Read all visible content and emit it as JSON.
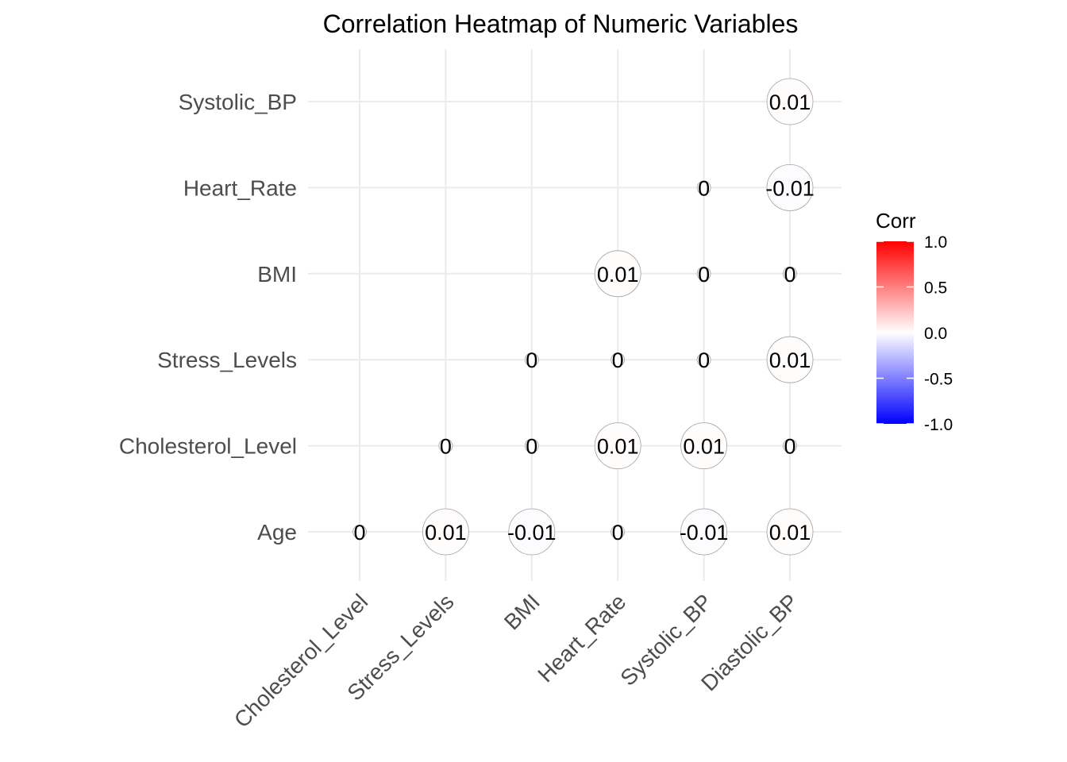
{
  "chart_data": {
    "type": "heatmap",
    "title": "Correlation Heatmap of Numeric Variables",
    "x_categories": [
      "Cholesterol_Level",
      "Stress_Levels",
      "BMI",
      "Heart_Rate",
      "Systolic_BP",
      "Diastolic_BP"
    ],
    "y_categories": [
      "Age",
      "Cholesterol_Level",
      "Stress_Levels",
      "BMI",
      "Heart_Rate",
      "Systolic_BP"
    ],
    "cells": [
      {
        "x": "Cholesterol_Level",
        "y": "Age",
        "value": 0.0,
        "label": "0"
      },
      {
        "x": "Stress_Levels",
        "y": "Age",
        "value": 0.01,
        "label": "0.01"
      },
      {
        "x": "BMI",
        "y": "Age",
        "value": -0.01,
        "label": "-0.01"
      },
      {
        "x": "Heart_Rate",
        "y": "Age",
        "value": 0.0,
        "label": "0"
      },
      {
        "x": "Systolic_BP",
        "y": "Age",
        "value": -0.01,
        "label": "-0.01"
      },
      {
        "x": "Diastolic_BP",
        "y": "Age",
        "value": 0.01,
        "label": "0.01"
      },
      {
        "x": "Stress_Levels",
        "y": "Cholesterol_Level",
        "value": 0.0,
        "label": "0"
      },
      {
        "x": "BMI",
        "y": "Cholesterol_Level",
        "value": 0.0,
        "label": "0"
      },
      {
        "x": "Heart_Rate",
        "y": "Cholesterol_Level",
        "value": 0.01,
        "label": "0.01"
      },
      {
        "x": "Systolic_BP",
        "y": "Cholesterol_Level",
        "value": 0.01,
        "label": "0.01"
      },
      {
        "x": "Diastolic_BP",
        "y": "Cholesterol_Level",
        "value": 0.0,
        "label": "0"
      },
      {
        "x": "BMI",
        "y": "Stress_Levels",
        "value": 0.0,
        "label": "0"
      },
      {
        "x": "Heart_Rate",
        "y": "Stress_Levels",
        "value": 0.0,
        "label": "0"
      },
      {
        "x": "Systolic_BP",
        "y": "Stress_Levels",
        "value": 0.0,
        "label": "0"
      },
      {
        "x": "Diastolic_BP",
        "y": "Stress_Levels",
        "value": 0.01,
        "label": "0.01"
      },
      {
        "x": "Heart_Rate",
        "y": "BMI",
        "value": 0.01,
        "label": "0.01"
      },
      {
        "x": "Systolic_BP",
        "y": "BMI",
        "value": 0.0,
        "label": "0"
      },
      {
        "x": "Diastolic_BP",
        "y": "BMI",
        "value": 0.0,
        "label": "0"
      },
      {
        "x": "Systolic_BP",
        "y": "Heart_Rate",
        "value": 0.0,
        "label": "0"
      },
      {
        "x": "Diastolic_BP",
        "y": "Heart_Rate",
        "value": -0.01,
        "label": "-0.01"
      },
      {
        "x": "Diastolic_BP",
        "y": "Systolic_BP",
        "value": 0.01,
        "label": "0.01"
      }
    ],
    "legend": {
      "title": "Corr",
      "range": [
        -1,
        1
      ],
      "ticks": [
        1.0,
        0.5,
        0.0,
        -0.5,
        -1.0
      ],
      "tick_labels": [
        "1.0",
        "0.5",
        "0.0",
        "-0.5",
        "-1.0"
      ],
      "colors": {
        "high": "#FF0000",
        "mid": "#FFFFFF",
        "low": "#0000FF"
      },
      "placement": "right"
    },
    "grid": true
  }
}
